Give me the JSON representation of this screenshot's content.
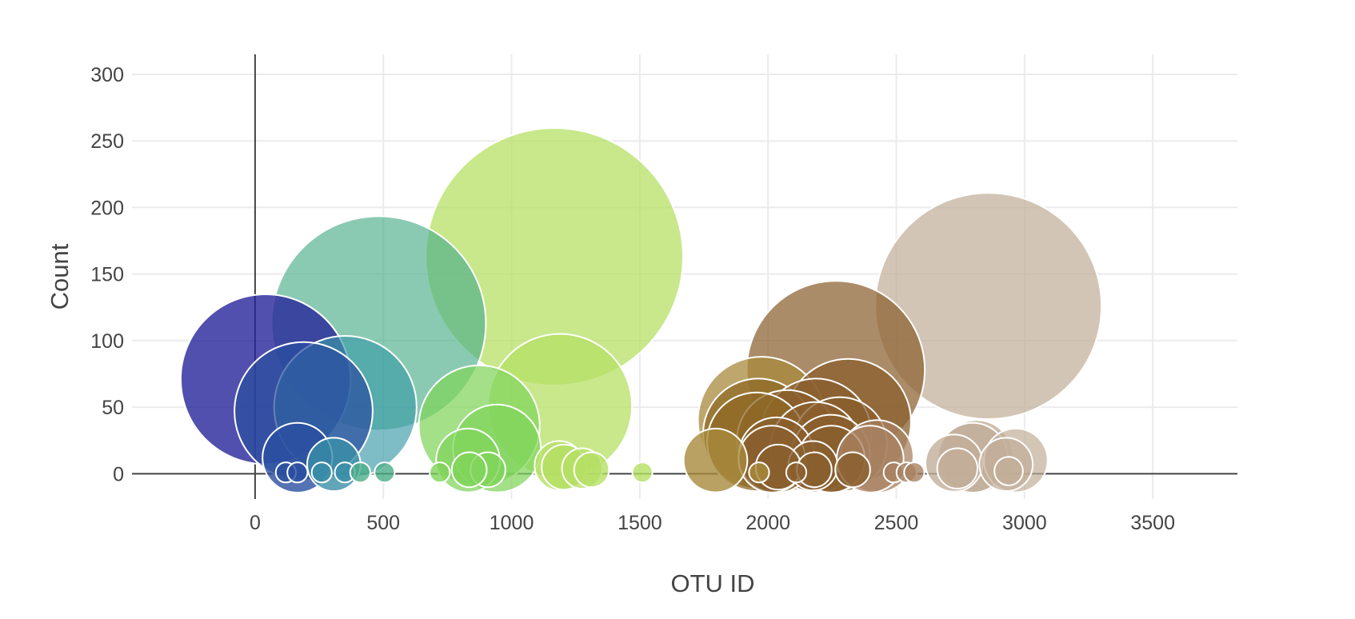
{
  "chart_data": {
    "type": "scatter",
    "variant": "bubble",
    "title": "",
    "xlabel": "OTU ID",
    "ylabel": "Count",
    "xlim": [
      -480,
      3830
    ],
    "ylim": [
      -19,
      315
    ],
    "x_ticks": [
      0,
      500,
      1000,
      1500,
      2000,
      2500,
      3000,
      3500
    ],
    "y_ticks": [
      0,
      50,
      100,
      150,
      200,
      250,
      300
    ],
    "grid": true,
    "legend": "none",
    "marker_size_encodes": "count",
    "colorscale": "Earth",
    "colors": {
      "deep-blue": "#27249a",
      "blue": "#2a4fa0",
      "teal-blue": "#3a8fa8",
      "teal": "#4cae8a",
      "green": "#7fd45a",
      "lime": "#b5e064",
      "olive": "#a88a3c",
      "brown": "#8a5f2e",
      "tan": "#c2ae98"
    },
    "points": [
      {
        "x": 41,
        "y": 71,
        "color": "#27249a",
        "opacity": 0.8
      },
      {
        "x": 482,
        "y": 113,
        "color": "#4cae8a",
        "opacity": 0.65
      },
      {
        "x": 1167,
        "y": 163,
        "color": "#b5e064",
        "opacity": 0.75
      },
      {
        "x": 2264,
        "y": 78,
        "color": "#8a5f2e",
        "opacity": 0.72
      },
      {
        "x": 2859,
        "y": 126,
        "color": "#c2ae98",
        "opacity": 0.72
      },
      {
        "x": 189,
        "y": 47,
        "color": "#2a4fa0",
        "opacity": 0.72
      },
      {
        "x": 352,
        "y": 50,
        "color": "#3a9aa8",
        "opacity": 0.65
      },
      {
        "x": 1189,
        "y": 51,
        "color": "#b5e064",
        "opacity": 0.75
      },
      {
        "x": 874,
        "y": 36,
        "color": "#7fd45a",
        "opacity": 0.72
      },
      {
        "x": 943,
        "y": 19,
        "color": "#7fd45a",
        "opacity": 0.72
      },
      {
        "x": 165,
        "y": 12,
        "color": "#2a4fa0",
        "opacity": 0.8
      },
      {
        "x": 307,
        "y": 7,
        "color": "#3a8fa8",
        "opacity": 0.8
      },
      {
        "x": 830,
        "y": 10,
        "color": "#7fd45a",
        "opacity": 0.72
      },
      {
        "x": 1795,
        "y": 10,
        "color": "#a88a3c",
        "opacity": 0.8
      },
      {
        "x": 1975,
        "y": 40,
        "color": "#a88a3c",
        "opacity": 0.75
      },
      {
        "x": 1962,
        "y": 30,
        "color": "#8f6a26",
        "opacity": 0.75
      },
      {
        "x": 1955,
        "y": 24,
        "color": "#8f6a26",
        "opacity": 0.75
      },
      {
        "x": 2075,
        "y": 25,
        "color": "#8a5f2e",
        "opacity": 0.75
      },
      {
        "x": 2187,
        "y": 30,
        "color": "#8a5f2e",
        "opacity": 0.75
      },
      {
        "x": 2185,
        "y": 20,
        "color": "#8a5f2e",
        "opacity": 0.75
      },
      {
        "x": 2312,
        "y": 39,
        "color": "#8a5f2e",
        "opacity": 0.75
      },
      {
        "x": 2280,
        "y": 22,
        "color": "#8a5f2e",
        "opacity": 0.75
      },
      {
        "x": 2245,
        "y": 15,
        "color": "#8a5f2e",
        "opacity": 0.75
      },
      {
        "x": 2247,
        "y": 11,
        "color": "#8a5f2e",
        "opacity": 0.8
      },
      {
        "x": 2033,
        "y": 14,
        "color": "#8a5f2e",
        "opacity": 0.75
      },
      {
        "x": 2015,
        "y": 11,
        "color": "#8a5f2e",
        "opacity": 0.8
      },
      {
        "x": 2040,
        "y": 5,
        "color": "#8a5f2e",
        "opacity": 0.8
      },
      {
        "x": 2175,
        "y": 6,
        "color": "#8a5f2e",
        "opacity": 0.8
      },
      {
        "x": 2180,
        "y": 3,
        "color": "#8a5f2e",
        "opacity": 0.8
      },
      {
        "x": 2425,
        "y": 13,
        "color": "#a88262",
        "opacity": 0.75
      },
      {
        "x": 2398,
        "y": 11,
        "color": "#a88262",
        "opacity": 0.75
      },
      {
        "x": 2725,
        "y": 8,
        "color": "#c2ae98",
        "opacity": 0.8
      },
      {
        "x": 2813,
        "y": 13,
        "color": "#c2ae98",
        "opacity": 0.8
      },
      {
        "x": 2798,
        "y": 12,
        "color": "#c2ae98",
        "opacity": 0.8
      },
      {
        "x": 2928,
        "y": 7,
        "color": "#c2ae98",
        "opacity": 0.7
      },
      {
        "x": 2966,
        "y": 10,
        "color": "#c2ae98",
        "opacity": 0.7
      },
      {
        "x": 2738,
        "y": 4,
        "color": "#c2ae98",
        "opacity": 0.8
      },
      {
        "x": 1186,
        "y": 6,
        "color": "#b5e064",
        "opacity": 0.8
      },
      {
        "x": 1205,
        "y": 5,
        "color": "#b5e064",
        "opacity": 0.8
      },
      {
        "x": 1275,
        "y": 4,
        "color": "#b5e064",
        "opacity": 0.8
      },
      {
        "x": 1312,
        "y": 3,
        "color": "#b5e064",
        "opacity": 0.8
      },
      {
        "x": 908,
        "y": 3,
        "color": "#7fd45a",
        "opacity": 0.8
      },
      {
        "x": 835,
        "y": 3,
        "color": "#7fd45a",
        "opacity": 0.8
      },
      {
        "x": 2330,
        "y": 3,
        "color": "#8a5f2e",
        "opacity": 0.8
      },
      {
        "x": 2938,
        "y": 2,
        "color": "#c2ae98",
        "opacity": 0.8
      },
      {
        "x": 120,
        "y": 1,
        "color": "#2a4fa0",
        "opacity": 0.8
      },
      {
        "x": 165,
        "y": 1,
        "color": "#2a4fa0",
        "opacity": 0.8
      },
      {
        "x": 260,
        "y": 1,
        "color": "#3a8fa8",
        "opacity": 0.8
      },
      {
        "x": 350,
        "y": 1,
        "color": "#3a8fa8",
        "opacity": 0.8
      },
      {
        "x": 410,
        "y": 1,
        "color": "#4cae8a",
        "opacity": 0.8
      },
      {
        "x": 505,
        "y": 1,
        "color": "#4cae8a",
        "opacity": 0.8
      },
      {
        "x": 720,
        "y": 1,
        "color": "#7fd45a",
        "opacity": 0.8
      },
      {
        "x": 1510,
        "y": 1,
        "color": "#b5e064",
        "opacity": 0.8
      },
      {
        "x": 1965,
        "y": 1,
        "color": "#a88a3c",
        "opacity": 0.8
      },
      {
        "x": 2110,
        "y": 1,
        "color": "#8a5f2e",
        "opacity": 0.8
      },
      {
        "x": 2490,
        "y": 1,
        "color": "#a88262",
        "opacity": 0.8
      },
      {
        "x": 2540,
        "y": 1,
        "color": "#a88262",
        "opacity": 0.8
      },
      {
        "x": 2570,
        "y": 1,
        "color": "#a88262",
        "opacity": 0.8
      }
    ]
  }
}
